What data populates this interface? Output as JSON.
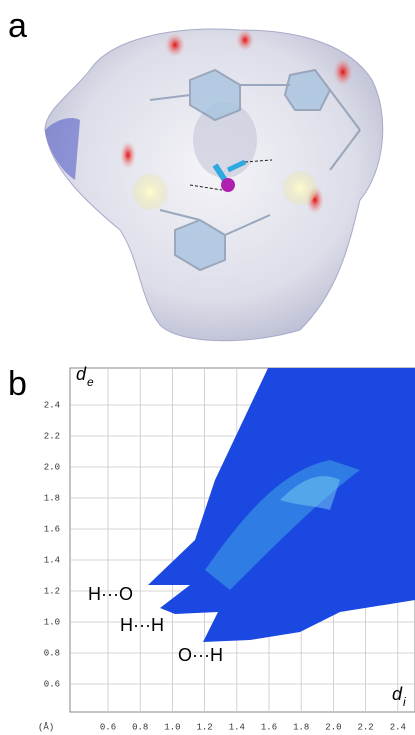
{
  "panel_a": {
    "label": "a"
  },
  "panel_b": {
    "label": "b",
    "y_axis": {
      "symbol": "d",
      "subscript": "e"
    },
    "x_axis": {
      "symbol": "d",
      "subscript": "i"
    },
    "unit": "(Å)",
    "xticks": [
      {
        "value": 0.6,
        "label": "0.6"
      },
      {
        "value": 0.8,
        "label": "0.8"
      },
      {
        "value": 1.0,
        "label": "1.0"
      },
      {
        "value": 1.2,
        "label": "1.2"
      },
      {
        "value": 1.4,
        "label": "1.4"
      },
      {
        "value": 1.6,
        "label": "1.6"
      },
      {
        "value": 1.8,
        "label": "1.8"
      },
      {
        "value": 2.0,
        "label": "2.0"
      },
      {
        "value": 2.2,
        "label": "2.2"
      },
      {
        "value": 2.4,
        "label": "2.4"
      }
    ],
    "yticks": [
      {
        "value": 0.6,
        "label": "0.6"
      },
      {
        "value": 0.8,
        "label": "0.8"
      },
      {
        "value": 1.0,
        "label": "1.0"
      },
      {
        "value": 1.2,
        "label": "1.2"
      },
      {
        "value": 1.4,
        "label": "1.4"
      },
      {
        "value": 1.6,
        "label": "1.6"
      },
      {
        "value": 1.8,
        "label": "1.8"
      },
      {
        "value": 2.0,
        "label": "2.0"
      },
      {
        "value": 2.2,
        "label": "2.2"
      },
      {
        "value": 2.4,
        "label": "2.4"
      }
    ],
    "annotations": [
      "H···O",
      "H···H",
      "O···H"
    ]
  }
}
